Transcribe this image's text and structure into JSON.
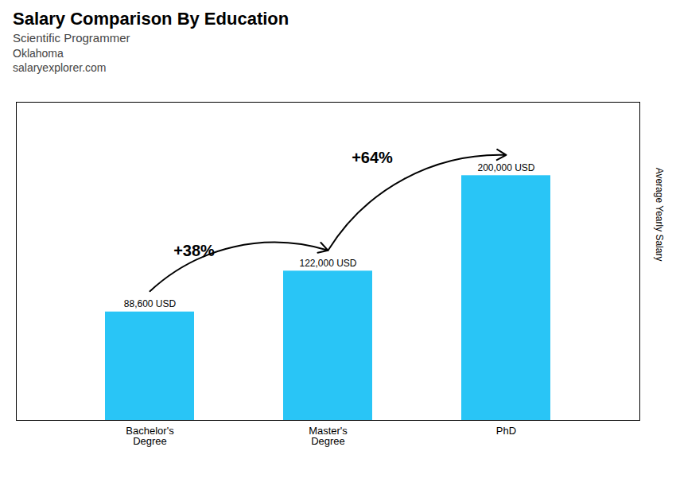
{
  "chart_data": {
    "type": "bar",
    "title": "Salary Comparison By Education",
    "subtitle": "Scientific Programmer",
    "categories": [
      "Bachelor's\nDegree",
      "Master's\nDegree",
      "PhD"
    ],
    "values": [
      88600,
      122000,
      200000
    ],
    "value_labels": [
      "88,600 USD",
      "122,000 USD",
      "200,000 USD"
    ],
    "data_labels": true,
    "color": "#29c5f6",
    "ylim": [
      0,
      260000
    ],
    "ylabel": "Average Yearly Salary",
    "tick_labels": "x",
    "annotations": [
      {
        "text": "+38%",
        "from": "Bachelor's\nDegree",
        "to": "Master's\nDegree"
      },
      {
        "text": "+64%",
        "from": "Master's\nDegree",
        "to": "PhD"
      },
      {
        "text": "Oklahoma"
      },
      {
        "text": "salaryexplorer.com"
      }
    ]
  }
}
